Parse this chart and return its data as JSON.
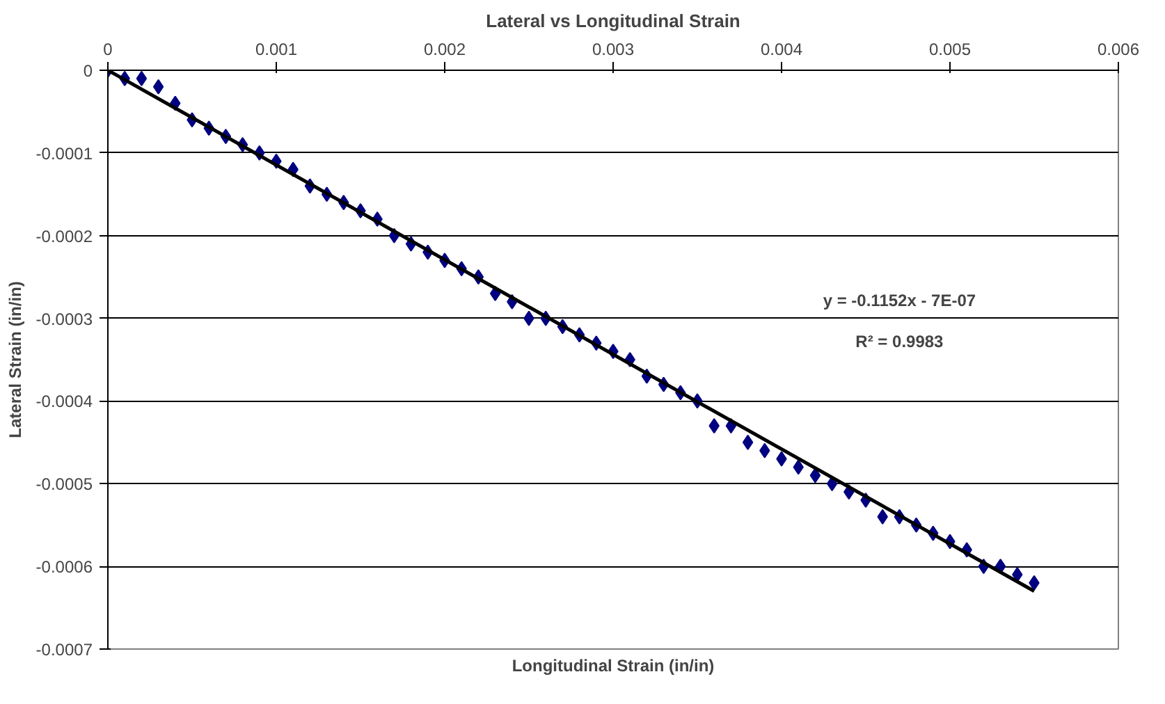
{
  "chart_data": {
    "type": "scatter",
    "title": "Lateral vs Longitudinal Strain",
    "xlabel": "Longitudinal Strain (in/in)",
    "ylabel": "Lateral Strain (in/in)",
    "x": [
      0,
      0.0001,
      0.0002,
      0.0003,
      0.0004,
      0.0005,
      0.0006,
      0.0007,
      0.0008,
      0.0009,
      0.001,
      0.0011,
      0.0012,
      0.0013,
      0.0014,
      0.0015,
      0.0016,
      0.0017,
      0.0018,
      0.0019,
      0.002,
      0.0021,
      0.0022,
      0.0023,
      0.0024,
      0.0025,
      0.0026,
      0.0027,
      0.0028,
      0.0029,
      0.003,
      0.0031,
      0.0032,
      0.0033,
      0.0034,
      0.0035,
      0.0036,
      0.0037,
      0.0038,
      0.0039,
      0.004,
      0.0041,
      0.0042,
      0.0043,
      0.0044,
      0.0045,
      0.0046,
      0.0047,
      0.0048,
      0.0049,
      0.005,
      0.0051,
      0.0052,
      0.0053,
      0.0054,
      0.0055
    ],
    "series": [
      {
        "color": "#000080",
        "marker": "diamond",
        "values": [
          0,
          -1e-05,
          -1e-05,
          -2e-05,
          -4e-05,
          -6e-05,
          -7e-05,
          -8e-05,
          -9e-05,
          -0.0001,
          -0.00011,
          -0.00012,
          -0.00014,
          -0.00015,
          -0.00016,
          -0.00017,
          -0.00018,
          -0.0002,
          -0.00021,
          -0.00022,
          -0.00023,
          -0.00024,
          -0.00025,
          -0.00027,
          -0.00028,
          -0.0003,
          -0.0003,
          -0.00031,
          -0.00032,
          -0.00033,
          -0.00034,
          -0.00035,
          -0.00037,
          -0.00038,
          -0.00039,
          -0.0004,
          -0.00043,
          -0.00043,
          -0.00045,
          -0.00046,
          -0.00047,
          -0.00048,
          -0.00049,
          -0.0005,
          -0.00051,
          -0.00052,
          -0.00054,
          -0.00054,
          -0.00055,
          -0.00056,
          -0.00057,
          -0.00058,
          -0.0006,
          -0.0006,
          -0.00061,
          -0.00062
        ]
      },
      {
        "type": "line",
        "color": "#000000",
        "marker": "none",
        "x": [
          0,
          0.0055
        ],
        "values": [
          0,
          -0.00063
        ]
      }
    ],
    "annotations": [
      "y = -0.1152x - 7E-07",
      "R² = 0.9983"
    ],
    "xlim": [
      0,
      0.006
    ],
    "ylim": [
      -0.0007,
      0
    ],
    "xticks": [
      {
        "value": 0,
        "label": "0"
      },
      0.001,
      0.002,
      0.003,
      0.004,
      0.005,
      0.006
    ],
    "yticks": [
      {
        "value": -0.0007,
        "label": "-0.0007"
      },
      {
        "value": -0.0006,
        "label": "-0.0006"
      },
      {
        "value": -0.0005,
        "label": "-0.0005"
      },
      {
        "value": -0.0004,
        "label": "-0.0004"
      },
      {
        "value": -0.0003,
        "label": "-0.0003"
      },
      {
        "value": -0.0002,
        "label": "-0.0002"
      },
      {
        "value": -0.0001,
        "label": "-0.0001"
      },
      {
        "value": 0,
        "label": "0"
      }
    ],
    "grid": "y"
  }
}
